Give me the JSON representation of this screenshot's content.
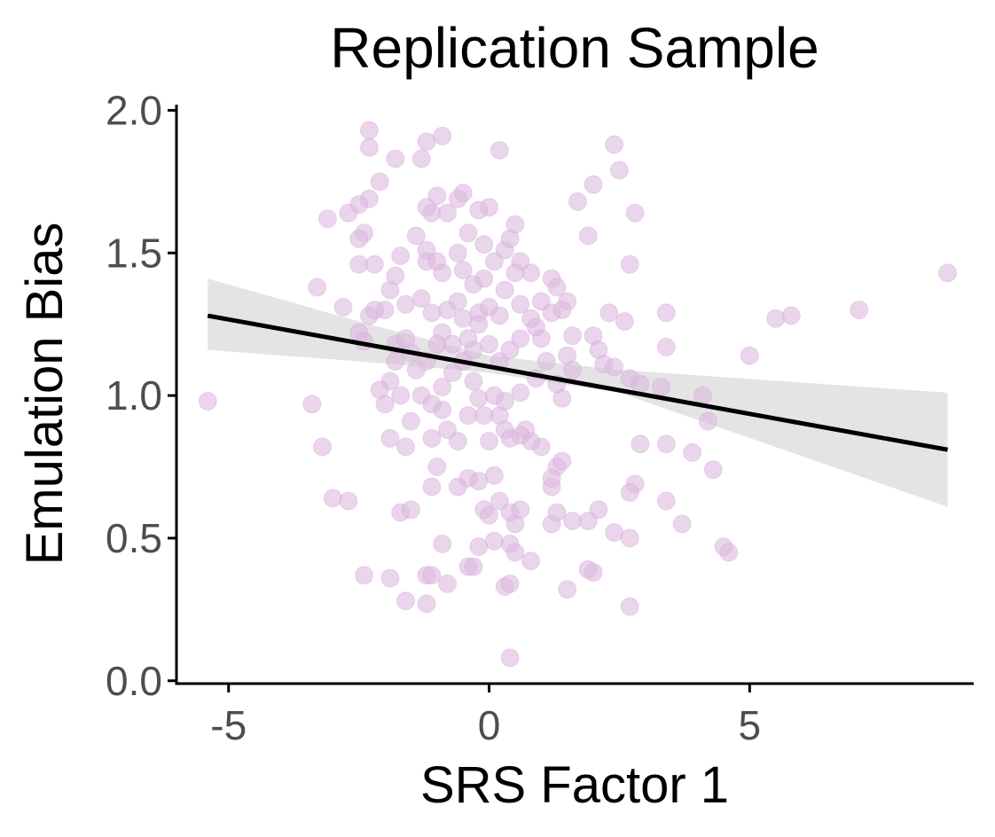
{
  "chart_data": {
    "type": "scatter",
    "title": "Replication Sample",
    "xlabel": "SRS Factor 1",
    "ylabel": "Emulation Bias",
    "xlim": [
      -6.0,
      9.3
    ],
    "ylim": [
      -0.01,
      2.02
    ],
    "x_ticks": [
      -5,
      0,
      5
    ],
    "x_tick_labels": [
      "-5",
      "0",
      "5"
    ],
    "y_ticks": [
      0.0,
      0.5,
      1.0,
      1.5,
      2.0
    ],
    "y_tick_labels": [
      "0.0",
      "0.5",
      "1.0",
      "1.5",
      "2.0"
    ],
    "grid": false,
    "legend": "none",
    "colors": {
      "points": "#dcb9e0",
      "points_stroke": "#c9a0cf",
      "fit_line": "#000000",
      "confidence_band": "#e4e4e4",
      "axis": "#000000",
      "tick_label": "#4d4d4d"
    },
    "fit_line": {
      "x": [
        -5.4,
        8.8
      ],
      "y": [
        1.28,
        0.81
      ]
    },
    "confidence_band": {
      "x": [
        -5.4,
        -2.5,
        0.0,
        2.5,
        8.8
      ],
      "upper": [
        1.41,
        1.26,
        1.14,
        1.09,
        1.01
      ],
      "lower": [
        1.16,
        1.12,
        1.08,
        1.01,
        0.61
      ]
    },
    "points": [
      [
        -5.4,
        0.98
      ],
      [
        -3.4,
        0.97
      ],
      [
        -3.2,
        0.82
      ],
      [
        -3.0,
        0.64
      ],
      [
        -2.7,
        0.63
      ],
      [
        -2.4,
        0.37
      ],
      [
        -2.3,
        1.93
      ],
      [
        -2.3,
        1.87
      ],
      [
        -2.1,
        1.75
      ],
      [
        -2.3,
        1.69
      ],
      [
        -2.5,
        1.67
      ],
      [
        -2.7,
        1.64
      ],
      [
        -3.1,
        1.62
      ],
      [
        -2.4,
        1.57
      ],
      [
        -2.5,
        1.55
      ],
      [
        -2.5,
        1.46
      ],
      [
        -2.2,
        1.46
      ],
      [
        -3.3,
        1.38
      ],
      [
        -2.8,
        1.31
      ],
      [
        -2.3,
        1.28
      ],
      [
        -2.5,
        1.22
      ],
      [
        -2.4,
        1.19
      ],
      [
        -1.8,
        1.83
      ],
      [
        -1.3,
        1.83
      ],
      [
        -1.2,
        1.89
      ],
      [
        -0.9,
        1.91
      ],
      [
        -1.1,
        1.64
      ],
      [
        -1.4,
        1.56
      ],
      [
        -1.7,
        1.49
      ],
      [
        -1.2,
        1.47
      ],
      [
        -1.9,
        1.37
      ],
      [
        -1.8,
        1.42
      ],
      [
        -1.6,
        1.32
      ],
      [
        -2.0,
        1.3
      ],
      [
        -2.2,
        1.3
      ],
      [
        -1.8,
        1.18
      ],
      [
        -1.9,
        1.05
      ],
      [
        -2.1,
        1.02
      ],
      [
        -2.0,
        0.97
      ],
      [
        -1.7,
        1.0
      ],
      [
        -1.9,
        0.85
      ],
      [
        -1.6,
        0.82
      ],
      [
        -1.5,
        0.91
      ],
      [
        -1.7,
        0.59
      ],
      [
        -1.5,
        0.6
      ],
      [
        -1.6,
        0.28
      ],
      [
        -1.9,
        0.36
      ],
      [
        -1.2,
        0.37
      ],
      [
        -1.1,
        0.37
      ],
      [
        -1.2,
        0.27
      ],
      [
        -0.8,
        0.34
      ],
      [
        -0.9,
        0.48
      ],
      [
        -0.4,
        0.4
      ],
      [
        -0.3,
        0.4
      ],
      [
        -0.2,
        0.47
      ],
      [
        0.1,
        0.49
      ],
      [
        0.4,
        0.48
      ],
      [
        0.5,
        0.45
      ],
      [
        0.3,
        0.33
      ],
      [
        0.4,
        0.34
      ],
      [
        0.8,
        0.42
      ],
      [
        0.4,
        0.08
      ],
      [
        1.5,
        0.32
      ],
      [
        1.9,
        0.39
      ],
      [
        2.0,
        0.38
      ],
      [
        2.7,
        0.26
      ],
      [
        2.4,
        0.52
      ],
      [
        2.7,
        0.5
      ],
      [
        3.7,
        0.55
      ],
      [
        3.4,
        0.63
      ],
      [
        4.5,
        0.47
      ],
      [
        4.6,
        0.45
      ],
      [
        4.3,
        0.74
      ],
      [
        3.9,
        0.8
      ],
      [
        3.4,
        0.83
      ],
      [
        2.9,
        0.83
      ],
      [
        2.8,
        0.69
      ],
      [
        2.7,
        0.66
      ],
      [
        2.1,
        0.6
      ],
      [
        1.9,
        0.56
      ],
      [
        1.6,
        0.56
      ],
      [
        1.2,
        0.55
      ],
      [
        1.3,
        0.59
      ],
      [
        1.3,
        0.75
      ],
      [
        1.4,
        0.77
      ],
      [
        1.2,
        0.68
      ],
      [
        1.2,
        0.71
      ],
      [
        1.0,
        0.82
      ],
      [
        0.8,
        0.84
      ],
      [
        0.7,
        0.88
      ],
      [
        0.6,
        0.86
      ],
      [
        0.4,
        0.85
      ],
      [
        0.2,
        0.93
      ],
      [
        0.3,
        0.88
      ],
      [
        0.0,
        0.84
      ],
      [
        -0.1,
        0.93
      ],
      [
        -0.2,
        0.99
      ],
      [
        -0.4,
        0.93
      ],
      [
        -0.6,
        0.84
      ],
      [
        -0.8,
        0.88
      ],
      [
        -0.9,
        0.95
      ],
      [
        -1.1,
        0.85
      ],
      [
        -1.0,
        0.75
      ],
      [
        -1.1,
        0.68
      ],
      [
        -0.6,
        0.68
      ],
      [
        -0.4,
        0.71
      ],
      [
        -0.2,
        0.7
      ],
      [
        0.1,
        0.72
      ],
      [
        -0.1,
        0.6
      ],
      [
        0.0,
        0.58
      ],
      [
        0.2,
        0.63
      ],
      [
        0.4,
        0.59
      ],
      [
        0.5,
        0.55
      ],
      [
        0.6,
        0.6
      ],
      [
        1.4,
        0.99
      ],
      [
        1.3,
        1.04
      ],
      [
        1.6,
        1.09
      ],
      [
        1.5,
        1.14
      ],
      [
        1.6,
        1.21
      ],
      [
        2.0,
        1.21
      ],
      [
        2.1,
        1.16
      ],
      [
        2.2,
        1.11
      ],
      [
        2.4,
        1.1
      ],
      [
        2.7,
        1.06
      ],
      [
        2.9,
        1.04
      ],
      [
        3.3,
        1.03
      ],
      [
        3.4,
        1.17
      ],
      [
        3.4,
        1.29
      ],
      [
        2.3,
        1.29
      ],
      [
        2.6,
        1.26
      ],
      [
        2.7,
        1.46
      ],
      [
        2.8,
        1.64
      ],
      [
        2.5,
        1.79
      ],
      [
        2.4,
        1.88
      ],
      [
        2.0,
        1.74
      ],
      [
        1.7,
        1.68
      ],
      [
        1.9,
        1.56
      ],
      [
        1.3,
        1.38
      ],
      [
        1.5,
        1.33
      ],
      [
        1.4,
        1.3
      ],
      [
        1.2,
        1.41
      ],
      [
        1.0,
        1.33
      ],
      [
        0.8,
        1.43
      ],
      [
        0.6,
        1.47
      ],
      [
        0.5,
        1.43
      ],
      [
        0.3,
        1.51
      ],
      [
        0.4,
        1.55
      ],
      [
        0.5,
        1.6
      ],
      [
        0.2,
        1.86
      ],
      [
        0.0,
        1.66
      ],
      [
        -0.2,
        1.65
      ],
      [
        -0.5,
        1.71
      ],
      [
        -0.6,
        1.69
      ],
      [
        -0.8,
        1.64
      ],
      [
        -1.0,
        1.7
      ],
      [
        -1.2,
        1.66
      ],
      [
        -1.2,
        1.51
      ],
      [
        -1.0,
        1.47
      ],
      [
        -0.9,
        1.43
      ],
      [
        -0.5,
        1.44
      ],
      [
        -0.3,
        1.39
      ],
      [
        -0.1,
        1.41
      ],
      [
        -0.2,
        1.29
      ],
      [
        -0.5,
        1.27
      ],
      [
        -0.6,
        1.33
      ],
      [
        -0.8,
        1.3
      ],
      [
        -0.9,
        1.22
      ],
      [
        -1.0,
        1.18
      ],
      [
        -1.2,
        1.12
      ],
      [
        -1.4,
        1.09
      ],
      [
        -1.3,
        1.0
      ],
      [
        -1.1,
        0.97
      ],
      [
        -0.9,
        1.03
      ],
      [
        -0.7,
        1.08
      ],
      [
        -0.5,
        1.12
      ],
      [
        -0.3,
        1.16
      ],
      [
        0.0,
        1.18
      ],
      [
        0.2,
        1.12
      ],
      [
        0.4,
        1.16
      ],
      [
        0.6,
        1.2
      ],
      [
        0.8,
        1.27
      ],
      [
        1.0,
        1.2
      ],
      [
        1.1,
        1.12
      ],
      [
        0.9,
        1.06
      ],
      [
        0.6,
        1.01
      ],
      [
        0.3,
        0.98
      ],
      [
        0.1,
        1.0
      ],
      [
        -0.3,
        1.05
      ],
      [
        -0.7,
        1.18
      ],
      [
        -1.1,
        1.29
      ],
      [
        -1.3,
        1.34
      ],
      [
        -1.5,
        1.15
      ],
      [
        -1.6,
        1.2
      ],
      [
        -1.8,
        1.12
      ],
      [
        -0.6,
        1.5
      ],
      [
        -0.4,
        1.57
      ],
      [
        -0.1,
        1.53
      ],
      [
        0.1,
        1.47
      ],
      [
        0.3,
        1.37
      ],
      [
        0.6,
        1.32
      ],
      [
        0.9,
        1.24
      ],
      [
        1.2,
        1.29
      ],
      [
        -0.2,
        1.25
      ],
      [
        -0.4,
        1.2
      ],
      [
        0.0,
        1.31
      ],
      [
        0.2,
        1.28
      ],
      [
        4.1,
        1.0
      ],
      [
        4.2,
        0.91
      ],
      [
        5.0,
        1.14
      ],
      [
        5.5,
        1.27
      ],
      [
        5.8,
        1.28
      ],
      [
        7.1,
        1.3
      ],
      [
        8.8,
        1.43
      ]
    ]
  }
}
